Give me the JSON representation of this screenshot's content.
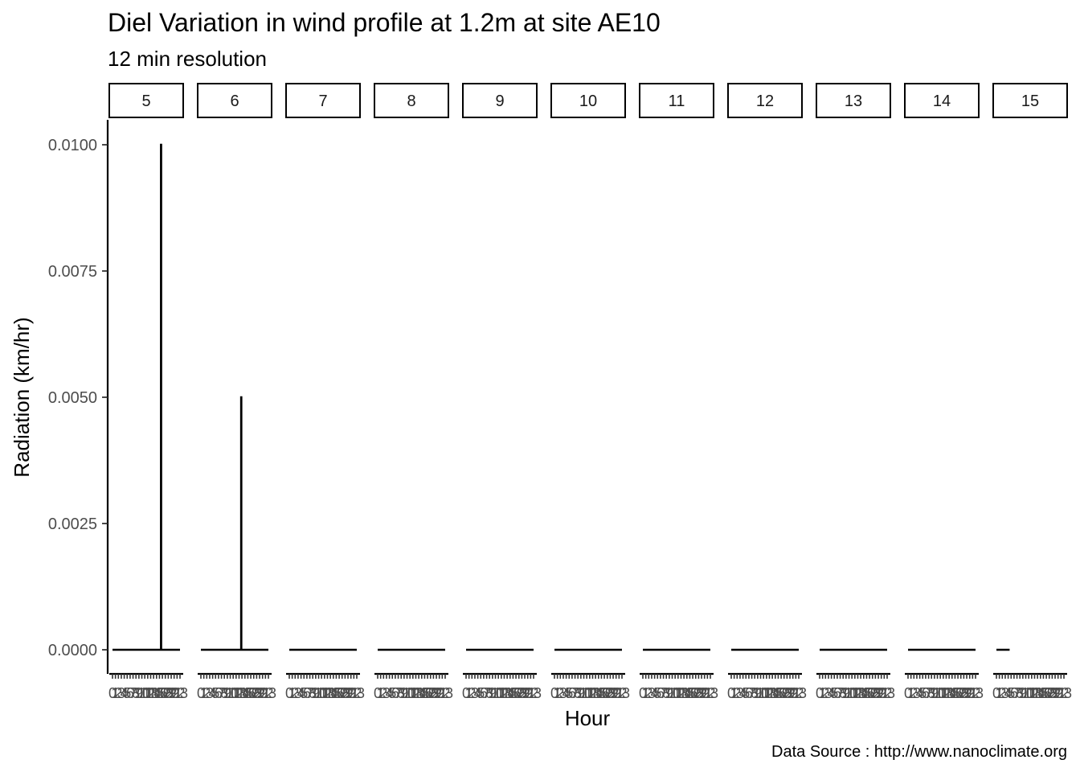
{
  "chart_data": {
    "type": "line",
    "title": "Diel Variation in wind profile at 1.2m at site AE10",
    "subtitle": "12 min resolution",
    "xlabel": "Hour",
    "ylabel": "Radiation (km/hr)",
    "caption": "Data Source : http://www.nanoclimate.org",
    "ylim": [
      0,
      0.0105
    ],
    "yticks": [
      0.0,
      0.0025,
      0.005,
      0.0075,
      0.01
    ],
    "ytick_labels": [
      "0.0000",
      "0.0025",
      "0.0050",
      "0.0075",
      "0.0100"
    ],
    "x_range": [
      0,
      23
    ],
    "xtick_values": [
      0,
      1,
      2,
      3,
      4,
      5,
      6,
      7,
      8,
      9,
      10,
      11,
      12,
      13,
      14,
      15,
      16,
      17,
      18,
      19,
      20,
      21,
      22,
      23
    ],
    "xtick_labels": [
      "0",
      "1",
      "2",
      "3",
      "4",
      "5",
      "6",
      "7",
      "8",
      "9",
      "10",
      "11",
      "12",
      "13",
      "14",
      "15",
      "16",
      "17",
      "18",
      "19",
      "20",
      "21",
      "22",
      "23"
    ],
    "grid": false,
    "facets": [
      {
        "label": "5",
        "x": [
          0,
          16.5,
          16.5,
          16.6,
          16.6,
          23
        ],
        "y": [
          0,
          0,
          0.01,
          0.01,
          0,
          0
        ]
      },
      {
        "label": "6",
        "x": [
          0,
          13.7,
          13.7,
          13.8,
          13.8,
          23
        ],
        "y": [
          0,
          0,
          0.005,
          0.005,
          0,
          0
        ]
      },
      {
        "label": "7",
        "x": [
          0,
          23
        ],
        "y": [
          0,
          0
        ]
      },
      {
        "label": "8",
        "x": [
          0,
          23
        ],
        "y": [
          0,
          0
        ]
      },
      {
        "label": "9",
        "x": [
          0,
          23
        ],
        "y": [
          0,
          0
        ]
      },
      {
        "label": "10",
        "x": [
          0,
          23
        ],
        "y": [
          0,
          0
        ]
      },
      {
        "label": "11",
        "x": [
          0,
          23
        ],
        "y": [
          0,
          0
        ]
      },
      {
        "label": "12",
        "x": [
          0,
          23
        ],
        "y": [
          0,
          0
        ]
      },
      {
        "label": "13",
        "x": [
          0,
          23
        ],
        "y": [
          0,
          0
        ]
      },
      {
        "label": "14",
        "x": [
          0,
          23
        ],
        "y": [
          0,
          0
        ]
      },
      {
        "label": "15",
        "x": [
          0,
          4.5
        ],
        "y": [
          0,
          0
        ]
      }
    ]
  }
}
